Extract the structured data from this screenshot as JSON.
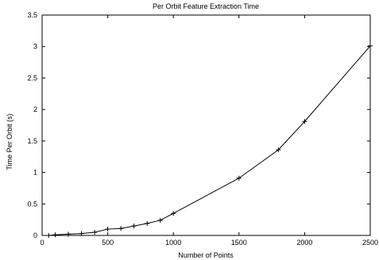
{
  "chart_data": {
    "type": "line",
    "title": "Per Orbit Feature Extraction Time",
    "xlabel": "Number of Points",
    "ylabel": "Time Per Orbit (s)",
    "xlim": [
      0,
      2500
    ],
    "ylim": [
      0,
      3.5
    ],
    "xticks": [
      0,
      500,
      1000,
      1500,
      2000,
      2500
    ],
    "yticks": [
      0,
      0.5,
      1,
      1.5,
      2,
      2.5,
      3,
      3.5
    ],
    "xtick_labels": [
      "0",
      "500",
      "1000",
      "1500",
      "2000",
      "2500"
    ],
    "ytick_labels": [
      "0",
      "0.5",
      "1",
      "1.5",
      "2",
      "2.5",
      "3",
      "3.5"
    ],
    "grid": false,
    "legend": "none",
    "series": [
      {
        "color": "#000000",
        "marker": "plus",
        "x": [
          50,
          100,
          200,
          300,
          400,
          500,
          600,
          700,
          800,
          900,
          1000,
          1500,
          1800,
          2000,
          2500
        ],
        "y": [
          0.0,
          0.01,
          0.02,
          0.03,
          0.05,
          0.1,
          0.11,
          0.15,
          0.19,
          0.24,
          0.35,
          0.91,
          1.36,
          1.81,
          3.01
        ]
      }
    ]
  }
}
